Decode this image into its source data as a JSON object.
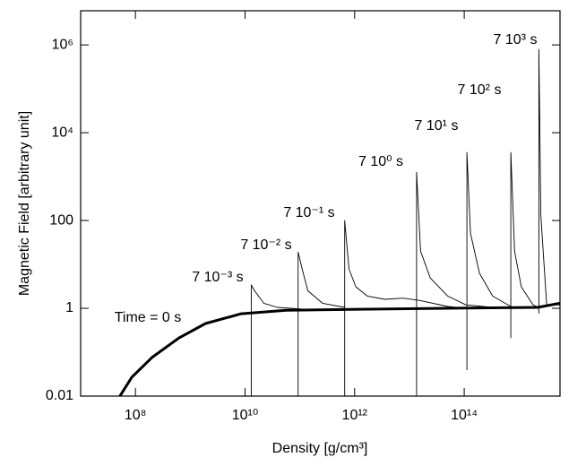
{
  "chart_data": {
    "type": "line",
    "xlabel": "Density  [g/cm³]",
    "ylabel": "Magnetic Field  [arbitrary unit]",
    "xscale": "log",
    "yscale": "log",
    "xlim": [
      10000000.0,
      5600000000000000.0
    ],
    "ylim": [
      0.01,
      6000000.0
    ],
    "xticks": [
      {
        "value": 100000000.0,
        "label": "10⁸"
      },
      {
        "value": 10000000000.0,
        "label": "10¹⁰"
      },
      {
        "value": 1000000000000.0,
        "label": "10¹²"
      },
      {
        "value": 100000000000000.0,
        "label": "10¹⁴"
      }
    ],
    "yticks": [
      0.01,
      1,
      100,
      {
        "value": 10000.0,
        "label": "10⁴"
      },
      {
        "value": 1000000.0,
        "label": "10⁶"
      }
    ],
    "color": "#000000",
    "series": [
      {
        "name": "Time =  0 s",
        "x": [
          52000000.0,
          86000000.0,
          200000000.0,
          620000000.0,
          1900000000.0,
          8500000000.0,
          56000000000.0,
          1200000000000.0,
          50000000000000.0,
          2200000000000000.0,
          5600000000000000.0
        ],
        "values": [
          0.01,
          0.027,
          0.076,
          0.21,
          0.45,
          0.75,
          0.9,
          0.95,
          1.0,
          1.05,
          1.3
        ]
      },
      {
        "name": "7 10⁻³ s",
        "x": [
          13000000000.0,
          13000000000.0,
          15000000000.0,
          22000000000.0,
          39000000000.0,
          120000000000.0
        ],
        "values": [
          0.01,
          3.4,
          2.5,
          1.3,
          1.05,
          0.95
        ]
      },
      {
        "name": "7 10⁻² s",
        "x": [
          93000000000.0,
          93000000000.0,
          110000000000.0,
          140000000000.0,
          260000000000.0,
          660000000000.0
        ],
        "values": [
          0.01,
          19,
          7.9,
          2.5,
          1.3,
          1.05
        ]
      },
      {
        "name": "7 10⁻¹ s",
        "x": [
          660000000000.0,
          660000000000.0,
          790000000000.0,
          1050000000000.0,
          1700000000000.0,
          3600000000000.0,
          7700000000000.0,
          16000000000000.0,
          50000000000000.0,
          107000000000000.0
        ],
        "values": [
          0.01,
          100,
          7.9,
          3.1,
          1.9,
          1.6,
          1.7,
          1.5,
          1.1,
          1.0
        ]
      },
      {
        "name": "7 10⁰ s",
        "x": [
          13500000000000.0,
          13500000000000.0,
          16000000000000.0,
          24000000000000.0,
          50000000000000.0,
          107000000000000.0,
          330000000000000.0
        ],
        "values": [
          0.01,
          1260,
          20,
          4.9,
          1.9,
          1.2,
          1.05
        ]
      },
      {
        "name": "7 10¹ s",
        "x": [
          112000000000000.0,
          112000000000000.0,
          130000000000000.0,
          190000000000000.0,
          330000000000000.0,
          710000000000000.0
        ],
        "values": [
          0.039,
          3550,
          51,
          6.3,
          1.9,
          1.1
        ]
      },
      {
        "name": "7 10² s",
        "x": [
          710000000000000.0,
          710000000000000.0,
          830000000000000.0,
          1100000000000000.0,
          1800000000000000.0,
          2300000000000000.0
        ],
        "values": [
          0.21,
          3550,
          20,
          3.1,
          1.2,
          1.05
        ]
      },
      {
        "name": "7 10³ s",
        "x": [
          2300000000000000.0,
          2300000000000000.0,
          2500000000000000.0,
          3200000000000000.0,
          5600000000000000.0
        ],
        "values": [
          0.76,
          790000.0,
          132,
          1.2,
          1.2
        ]
      }
    ]
  }
}
